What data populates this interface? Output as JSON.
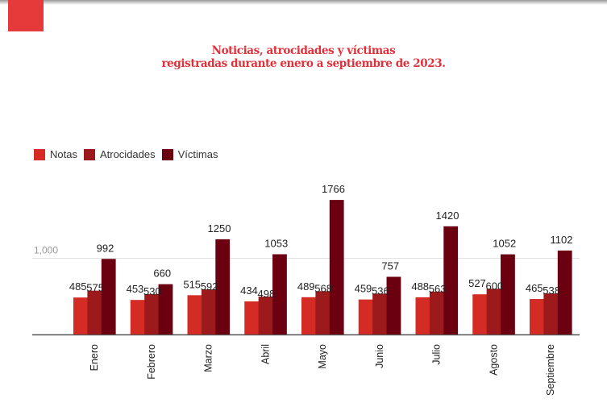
{
  "header": {
    "title_line1": "Noticias, atrocidades y víctimas",
    "title_line2": "registradas durante  enero a septiembre de 2023.",
    "accent_color": "#e63a3a"
  },
  "chart_data": {
    "type": "bar",
    "title": "Noticias, atrocidades y víctimas registradas durante enero a septiembre de 2023.",
    "xlabel": "",
    "ylabel": "",
    "categories": [
      "Enero",
      "Febrero",
      "Marzo",
      "Abril",
      "Mayo",
      "Junio",
      "Julio",
      "Agosto",
      "Septiembre"
    ],
    "series": [
      {
        "name": "Notas",
        "color": "#d42b24",
        "values": [
          485,
          453,
          515,
          434,
          489,
          459,
          488,
          527,
          465
        ]
      },
      {
        "name": "Atrocidades",
        "color": "#9c1a1b",
        "values": [
          575,
          530,
          592,
          498,
          568,
          536,
          563,
          600,
          538
        ]
      },
      {
        "name": "Víctimas",
        "color": "#6a0010",
        "values": [
          992,
          660,
          1250,
          1053,
          1766,
          757,
          1420,
          1052,
          1102
        ]
      }
    ],
    "yticks": [
      {
        "value": 1000,
        "label": "1,000"
      }
    ],
    "ylim": [
      0,
      1766
    ],
    "grid": true,
    "legend": "top-left",
    "data_labels": true
  }
}
